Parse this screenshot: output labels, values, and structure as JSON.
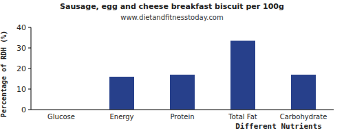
{
  "chart_data": {
    "type": "bar",
    "title": "Sausage, egg and cheese breakfast biscuit per 100g",
    "subtitle": "www.dietandfitnesstoday.com",
    "x_label": "Different Nutrients",
    "y_label": "Percentage of RDH (%)",
    "categories": [
      "Glucose",
      "Energy",
      "Protein",
      "Total Fat",
      "Carbohydrate"
    ],
    "values": [
      0,
      16,
      17,
      33.5,
      17
    ],
    "color": "#27408b",
    "ylim": [
      0,
      40
    ],
    "yticks": [
      0,
      10,
      20,
      30,
      40
    ],
    "grid": false
  }
}
